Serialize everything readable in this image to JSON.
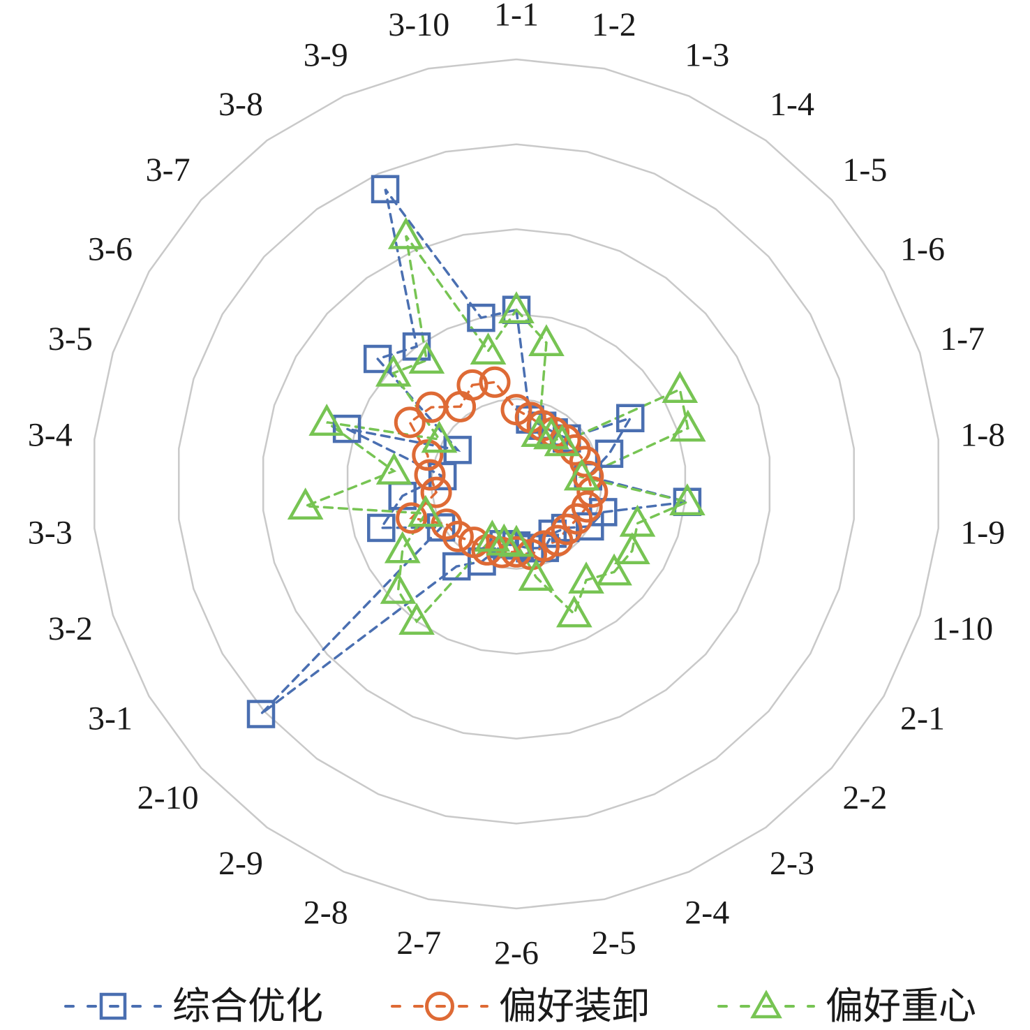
{
  "figure": {
    "background": "#FFFFFF",
    "text_color": "#1A1A1A",
    "grid_color": "#C9C9C9"
  },
  "chart_data": {
    "type": "radar",
    "title": "",
    "categories": [
      "1-1",
      "1-2",
      "1-3",
      "1-4",
      "1-5",
      "1-6",
      "1-7",
      "1-8",
      "1-9",
      "1-10",
      "2-1",
      "2-2",
      "2-3",
      "2-4",
      "2-5",
      "2-6",
      "2-7",
      "2-8",
      "2-9",
      "2-10",
      "3-1",
      "3-2",
      "3-3",
      "3-4",
      "3-5",
      "3-6",
      "3-7",
      "3-8",
      "3-9",
      "3-10"
    ],
    "start_axis": "top",
    "direction": "clockwise",
    "grid": true,
    "spokes": false,
    "ring_levels": [
      0.2,
      0.4,
      0.6,
      0.8,
      1.0
    ],
    "value_unit": "fraction_of_outer_radius",
    "line_style": "dashed",
    "legend_position": "bottom",
    "series": [
      {
        "name": "综合优化",
        "marker": "square",
        "color": "#4A6FB1",
        "values": [
          0.41,
          0.155,
          0.15,
          0.15,
          0.16,
          0.31,
          0.23,
          0.17,
          0.405,
          0.215,
          0.2,
          0.155,
          0.145,
          0.165,
          0.155,
          0.145,
          0.145,
          0.2,
          0.24,
          0.81,
          0.205,
          0.335,
          0.27,
          0.175,
          0.42,
          0.16,
          0.44,
          0.4,
          0.76,
          0.4
        ]
      },
      {
        "name": "偏好装卸",
        "marker": "circle",
        "color": "#DE6A35",
        "values": [
          0.175,
          0.16,
          0.15,
          0.15,
          0.155,
          0.16,
          0.17,
          0.17,
          0.18,
          0.175,
          0.165,
          0.16,
          0.165,
          0.16,
          0.17,
          0.16,
          0.165,
          0.17,
          0.17,
          0.185,
          0.19,
          0.26,
          0.19,
          0.205,
          0.22,
          0.29,
          0.27,
          0.225,
          0.255,
          0.245
        ]
      },
      {
        "name": "偏好重心",
        "marker": "triangle",
        "color": "#77C453",
        "values": [
          0.41,
          0.34,
          0.13,
          0.14,
          0.145,
          0.445,
          0.425,
          0.155,
          0.405,
          0.3,
          0.315,
          0.31,
          0.28,
          0.335,
          0.225,
          0.14,
          0.14,
          0.14,
          0.4,
          0.375,
          0.31,
          0.225,
          0.5,
          0.29,
          0.47,
          0.21,
          0.39,
          0.36,
          0.64,
          0.32
        ]
      }
    ]
  }
}
